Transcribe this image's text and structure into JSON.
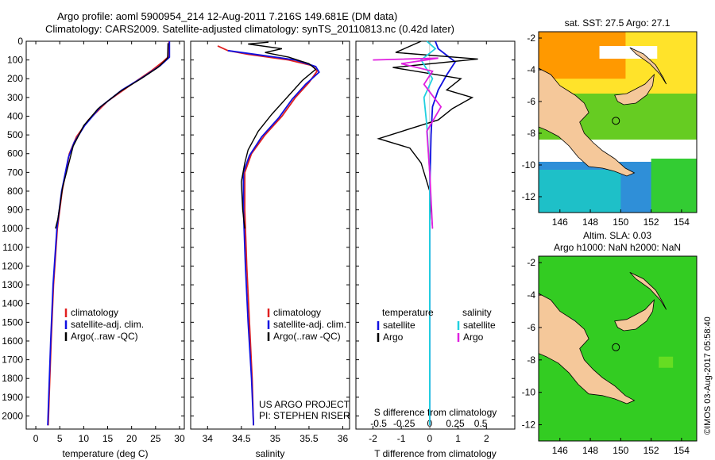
{
  "header": {
    "line1": "Argo profile: aoml 5900954_214 12-Aug-2011 7.216S 149.681E (DM data)",
    "line2": "Climatology: CARS2009. Satellite-adjusted climatology: synTS_20110813.nc (0.42d later)"
  },
  "colors": {
    "climatology": "#e02020",
    "satellite": "#1010e0",
    "argo": "#000000",
    "cyan": "#20d0e0",
    "magenta": "#e020e0",
    "land": "#f5c89a",
    "sea_green": "#33cc22"
  },
  "credits": {
    "project": "US ARGO PROJECT",
    "pi": "PI: STEPHEN RISER",
    "imos": "©IMOS 03-Aug-2017 05:58:40"
  },
  "chart_data": [
    {
      "type": "line",
      "name": "temperature-profile",
      "xlabel": "temperature (deg C)",
      "ylabel": "",
      "xlim": [
        -2,
        31
      ],
      "ylim": [
        2070,
        0
      ],
      "xticks": [
        0,
        5,
        10,
        15,
        20,
        25,
        30
      ],
      "yticks": [
        0,
        100,
        200,
        300,
        400,
        500,
        600,
        700,
        800,
        900,
        1000,
        1100,
        1200,
        1300,
        1400,
        1500,
        1600,
        1700,
        1800,
        1900,
        2000
      ],
      "legend": [
        "climatology",
        "satellite-adj. clim.",
        "Argo(..raw -QC)"
      ],
      "series": [
        {
          "name": "climatology",
          "color_key": "climatology",
          "points": [
            [
              27.8,
              0
            ],
            [
              27.8,
              80
            ],
            [
              26.5,
              110
            ],
            [
              24,
              160
            ],
            [
              20,
              230
            ],
            [
              15,
              320
            ],
            [
              11,
              420
            ],
            [
              8.5,
              510
            ],
            [
              7,
              600
            ],
            [
              5.5,
              800
            ],
            [
              4.5,
              1000
            ],
            [
              3.7,
              1300
            ],
            [
              3.2,
              1600
            ],
            [
              2.8,
              1900
            ],
            [
              2.6,
              2050
            ]
          ]
        },
        {
          "name": "satellite-adj. clim.",
          "color_key": "satellite",
          "points": [
            [
              27.9,
              0
            ],
            [
              27.9,
              85
            ],
            [
              26,
              130
            ],
            [
              22.5,
              190
            ],
            [
              18,
              260
            ],
            [
              13.5,
              350
            ],
            [
              10.2,
              450
            ],
            [
              8,
              540
            ],
            [
              6.8,
              620
            ],
            [
              5.4,
              800
            ],
            [
              4.4,
              1000
            ],
            [
              3.6,
              1300
            ],
            [
              3.1,
              1600
            ],
            [
              2.7,
              1900
            ],
            [
              2.5,
              2050
            ]
          ]
        },
        {
          "name": "Argo(..raw -QC)",
          "color_key": "argo",
          "points": [
            [
              27.6,
              10
            ],
            [
              27.5,
              90
            ],
            [
              25.5,
              140
            ],
            [
              22,
              200
            ],
            [
              17.5,
              270
            ],
            [
              13,
              360
            ],
            [
              10,
              450
            ],
            [
              7.8,
              560
            ],
            [
              7.2,
              620
            ],
            [
              5.6,
              780
            ],
            [
              4.6,
              950
            ],
            [
              4.1,
              1000
            ]
          ]
        }
      ]
    },
    {
      "type": "line",
      "name": "salinity-profile",
      "xlabel": "salinity",
      "xlim": [
        33.75,
        36.1
      ],
      "ylim": [
        2070,
        0
      ],
      "xticks": [
        34,
        34.5,
        35,
        35.5,
        36
      ],
      "legend": [
        "climatology",
        "satellite-adj. clim.",
        "Argo(..raw -QC)"
      ],
      "series": [
        {
          "name": "climatology",
          "color_key": "climatology",
          "points": [
            [
              34.15,
              25
            ],
            [
              34.3,
              50
            ],
            [
              34.6,
              70
            ],
            [
              35.2,
              100
            ],
            [
              35.55,
              130
            ],
            [
              35.62,
              160
            ],
            [
              35.5,
              220
            ],
            [
              35.3,
              300
            ],
            [
              35.1,
              400
            ],
            [
              34.85,
              500
            ],
            [
              34.65,
              600
            ],
            [
              34.55,
              700
            ],
            [
              34.55,
              900
            ],
            [
              34.58,
              1200
            ],
            [
              34.62,
              1500
            ],
            [
              34.66,
              1800
            ],
            [
              34.68,
              2050
            ]
          ]
        },
        {
          "name": "satellite-adj. clim.",
          "color_key": "satellite",
          "points": [
            [
              34.3,
              50
            ],
            [
              34.8,
              75
            ],
            [
              35.3,
              100
            ],
            [
              35.6,
              135
            ],
            [
              35.65,
              165
            ],
            [
              35.45,
              230
            ],
            [
              35.25,
              310
            ],
            [
              35.05,
              410
            ],
            [
              34.8,
              510
            ],
            [
              34.62,
              610
            ],
            [
              34.53,
              700
            ],
            [
              34.53,
              900
            ],
            [
              34.56,
              1200
            ],
            [
              34.6,
              1500
            ],
            [
              34.65,
              1800
            ],
            [
              34.68,
              2050
            ]
          ]
        },
        {
          "name": "Argo(..raw -QC)",
          "color_key": "argo",
          "points": [
            [
              34.9,
              5
            ],
            [
              34.6,
              15
            ],
            [
              35.1,
              40
            ],
            [
              34.85,
              60
            ],
            [
              35.2,
              85
            ],
            [
              35.5,
              120
            ],
            [
              35.6,
              150
            ],
            [
              35.4,
              210
            ],
            [
              35.2,
              290
            ],
            [
              34.95,
              390
            ],
            [
              34.75,
              480
            ],
            [
              34.6,
              580
            ],
            [
              34.55,
              650
            ],
            [
              34.5,
              750
            ],
            [
              34.52,
              900
            ],
            [
              34.55,
              1000
            ]
          ]
        }
      ]
    },
    {
      "type": "line",
      "name": "difference-profile",
      "xlabel": "T difference from climatology",
      "xlabel_top": "S difference from climatology",
      "xlim": [
        -2.6,
        3
      ],
      "ylim": [
        2070,
        0
      ],
      "xticks": [
        -2,
        -1,
        0,
        1,
        2
      ],
      "xticks_s": [
        "-0.5",
        "-0.25",
        "0",
        "0.25",
        "0.5"
      ],
      "legend_left_title": "temperature",
      "legend_right_title": "salinity",
      "legend_left": [
        "satellite",
        "Argo"
      ],
      "legend_right": [
        "satellite",
        "Argo"
      ],
      "series": [
        {
          "name": "T satellite",
          "color_key": "satellite",
          "points": [
            [
              0.2,
              0
            ],
            [
              0.3,
              40
            ],
            [
              0.9,
              110
            ],
            [
              0.6,
              180
            ],
            [
              0.3,
              260
            ],
            [
              0.1,
              350
            ],
            [
              0.05,
              500
            ],
            [
              0,
              800
            ],
            [
              0,
              1200
            ],
            [
              0,
              2050
            ]
          ]
        },
        {
          "name": "T Argo",
          "color_key": "argo",
          "points": [
            [
              -0.3,
              0
            ],
            [
              -1.2,
              60
            ],
            [
              1.7,
              95
            ],
            [
              -1.3,
              140
            ],
            [
              1.1,
              200
            ],
            [
              0.6,
              260
            ],
            [
              1.5,
              300
            ],
            [
              0.8,
              360
            ],
            [
              0.3,
              420
            ],
            [
              -1.8,
              520
            ],
            [
              -0.7,
              570
            ],
            [
              -0.3,
              650
            ],
            [
              0,
              800
            ],
            [
              0.1,
              1000
            ]
          ]
        },
        {
          "name": "S satellite",
          "color_key": "cyan",
          "points": [
            [
              -0.1,
              0
            ],
            [
              0.2,
              40
            ],
            [
              -0.3,
              100
            ],
            [
              0.1,
              200
            ],
            [
              -0.2,
              300
            ],
            [
              -0.1,
              450
            ],
            [
              0,
              700
            ],
            [
              0,
              2050
            ]
          ]
        },
        {
          "name": "S Argo",
          "color_key": "magenta",
          "points": [
            [
              -2.0,
              100
            ],
            [
              0.3,
              90
            ],
            [
              -1.0,
              120
            ],
            [
              0.1,
              160
            ],
            [
              -0.2,
              230
            ],
            [
              0.4,
              350
            ],
            [
              -0.1,
              480
            ],
            [
              0,
              700
            ],
            [
              0.1,
              1000
            ]
          ]
        }
      ]
    },
    {
      "type": "heatmap",
      "name": "sst-map",
      "title": "sat. SST: 27.5 Argo: 27.1",
      "xticks": [
        146,
        148,
        150,
        152,
        154
      ],
      "yticks": [
        -2,
        -4,
        -6,
        -8,
        -10,
        -12
      ],
      "marker": [
        149.681,
        -7.216
      ]
    },
    {
      "type": "heatmap",
      "name": "sla-map",
      "title_line1": "Altim. SLA: 0.03",
      "title_line2": "Argo h1000: NaN h2000: NaN",
      "xticks": [
        146,
        148,
        150,
        152,
        154
      ],
      "yticks": [
        -2,
        -4,
        -6,
        -8,
        -10,
        -12
      ],
      "marker": [
        149.681,
        -7.216
      ]
    }
  ]
}
